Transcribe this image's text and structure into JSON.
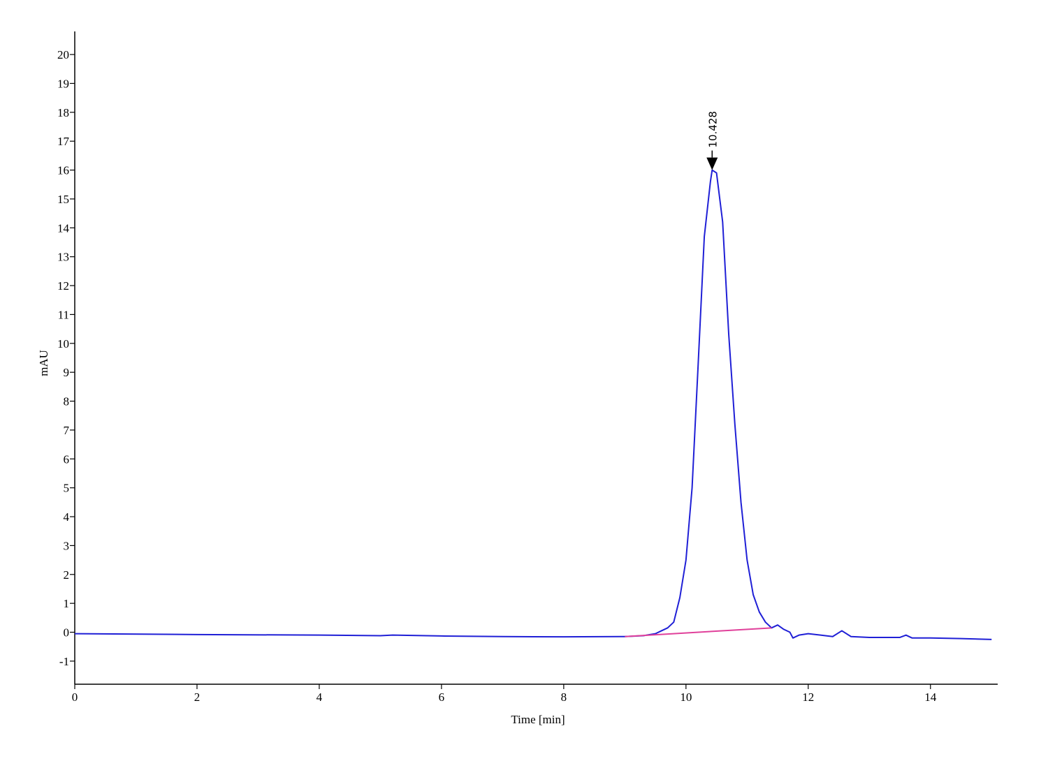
{
  "chart_data": {
    "type": "line",
    "xlabel": "Time [min]",
    "ylabel": "mAU",
    "xlim": [
      0,
      15.1
    ],
    "ylim": [
      -1.8,
      20.8
    ],
    "xticks": [
      0,
      2,
      4,
      6,
      8,
      10,
      12,
      14
    ],
    "yticks": [
      -1,
      0,
      1,
      2,
      3,
      4,
      5,
      6,
      7,
      8,
      9,
      10,
      11,
      12,
      13,
      14,
      15,
      16,
      17,
      18,
      19,
      20
    ],
    "series": [
      {
        "color": "#1f1fd6",
        "x": [
          0,
          2,
          4,
          5,
          5.2,
          6,
          7,
          8,
          9,
          9.3,
          9.5,
          9.6,
          9.7,
          9.8,
          9.9,
          10.0,
          10.1,
          10.2,
          10.3,
          10.4,
          10.428,
          10.5,
          10.6,
          10.7,
          10.8,
          10.9,
          11.0,
          11.1,
          11.2,
          11.3,
          11.4,
          11.5,
          11.6,
          11.7,
          11.75,
          11.85,
          12.0,
          12.2,
          12.4,
          12.55,
          12.7,
          13.0,
          13.5,
          13.6,
          13.7,
          14.0,
          14.5,
          15.0
        ],
        "values": [
          -0.05,
          -0.08,
          -0.1,
          -0.12,
          -0.1,
          -0.13,
          -0.15,
          -0.16,
          -0.15,
          -0.12,
          -0.05,
          0.05,
          0.15,
          0.35,
          1.2,
          2.5,
          5,
          9.3,
          13.7,
          15.6,
          16,
          15.9,
          14.2,
          10.3,
          7.2,
          4.5,
          2.5,
          1.3,
          0.7,
          0.35,
          0.15,
          0.25,
          0.1,
          0.0,
          -0.2,
          -0.1,
          -0.05,
          -0.1,
          -0.15,
          0.05,
          -0.15,
          -0.18,
          -0.18,
          -0.1,
          -0.2,
          -0.2,
          -0.22,
          -0.25
        ]
      },
      {
        "color": "#e0409a",
        "x": [
          9.0,
          11.4
        ],
        "values": [
          -0.15,
          0.15
        ]
      }
    ],
    "annotations": [
      {
        "x": 10.428,
        "y": 16
      }
    ]
  }
}
